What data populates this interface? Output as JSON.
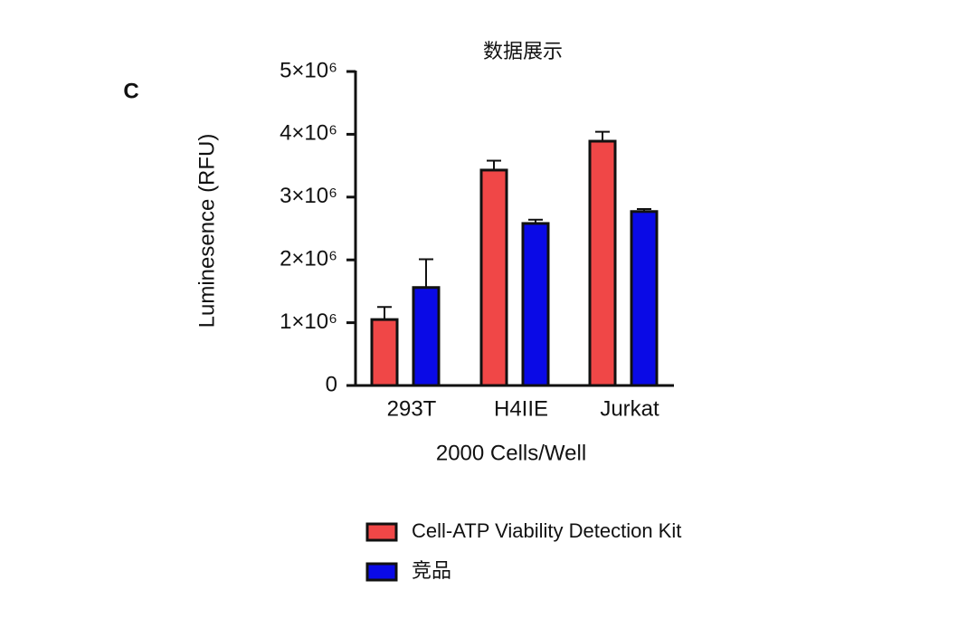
{
  "panel_label": "C",
  "chart_data": {
    "type": "bar",
    "title": "数据展示",
    "y_label": "Luminesence (RFU)",
    "x_label": "2000 Cells/Well",
    "categories": [
      "293T",
      "H4IIE",
      "Jurkat"
    ],
    "series": [
      {
        "name": "Cell-ATP Viability Detection Kit",
        "color": "#f04747",
        "values": [
          1050000,
          3430000,
          3890000
        ],
        "errors": [
          200000,
          150000,
          150000
        ]
      },
      {
        "name": "竞品",
        "color": "#0a0ae6",
        "values": [
          1560000,
          2580000,
          2770000
        ],
        "errors": [
          450000,
          60000,
          40000
        ]
      }
    ],
    "ylim": [
      0,
      5000000
    ],
    "yticks": [
      0,
      {
        "value": 1000000,
        "label": "1×10⁶"
      },
      {
        "value": 2000000,
        "label": "2×10⁶"
      },
      {
        "value": 3000000,
        "label": "3×10⁶"
      },
      {
        "value": 4000000,
        "label": "4×10⁶"
      },
      {
        "value": 5000000,
        "label": "5×10⁶"
      }
    ],
    "grid": false
  }
}
